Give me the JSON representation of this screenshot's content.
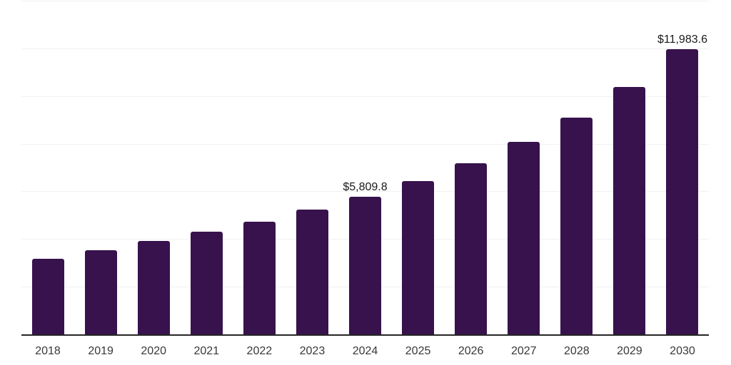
{
  "chart_data": {
    "type": "bar",
    "title": "",
    "xlabel": "",
    "ylabel": "",
    "categories": [
      "2018",
      "2019",
      "2020",
      "2021",
      "2022",
      "2023",
      "2024",
      "2025",
      "2026",
      "2027",
      "2028",
      "2029",
      "2030"
    ],
    "values": [
      3200,
      3560,
      3940,
      4330,
      4750,
      5260,
      5809.8,
      6450,
      7210,
      8100,
      9130,
      10400,
      11983.6
    ],
    "data_labels": [
      "",
      "",
      "",
      "",
      "",
      "",
      "$5,809.8",
      "",
      "",
      "",
      "",
      "",
      "$11,983.6"
    ],
    "ylim": [
      0,
      14000
    ],
    "gridline_step": 2000,
    "grid": "horizontal",
    "legend_position": "none",
    "colors": {
      "bar": "#37124D",
      "axis_line": "#262626",
      "gridline": "#f0f0f1",
      "tick_label": "#383838",
      "data_label": "#1a1a1a",
      "background": "#ffffff"
    }
  }
}
